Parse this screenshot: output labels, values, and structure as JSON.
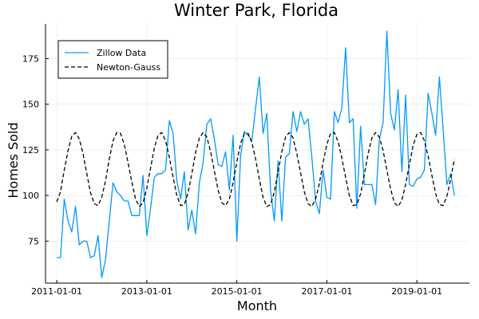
{
  "chart_data": {
    "type": "line",
    "title": "Winter Park, Florida",
    "xlabel": "Month",
    "ylabel": "Homes Sold",
    "x_ticks": [
      "2011-01-01",
      "2013-01-01",
      "2015-01-01",
      "2017-01-01",
      "2019-01-01"
    ],
    "y_ticks": [
      75,
      100,
      125,
      150,
      175
    ],
    "xlim": [
      "2010-10-01",
      "2020-03-01"
    ],
    "ylim": [
      52,
      194
    ],
    "grid": true,
    "legend_position": "top-left",
    "series": [
      {
        "name": "Zillow Data",
        "color": "#009af9",
        "style": "solid",
        "x": [
          "2011-01-01",
          "2011-02-01",
          "2011-03-01",
          "2011-04-01",
          "2011-05-01",
          "2011-06-01",
          "2011-07-01",
          "2011-08-01",
          "2011-09-01",
          "2011-10-01",
          "2011-11-01",
          "2011-12-01",
          "2012-01-01",
          "2012-02-01",
          "2012-03-01",
          "2012-04-01",
          "2012-05-01",
          "2012-06-01",
          "2012-07-01",
          "2012-08-01",
          "2012-09-01",
          "2012-10-01",
          "2012-11-01",
          "2012-12-01",
          "2013-01-01",
          "2013-02-01",
          "2013-03-01",
          "2013-04-01",
          "2013-05-01",
          "2013-06-01",
          "2013-07-01",
          "2013-08-01",
          "2013-09-01",
          "2013-10-01",
          "2013-11-01",
          "2013-12-01",
          "2014-01-01",
          "2014-02-01",
          "2014-03-01",
          "2014-04-01",
          "2014-05-01",
          "2014-06-01",
          "2014-07-01",
          "2014-08-01",
          "2014-09-01",
          "2014-10-01",
          "2014-11-01",
          "2014-12-01",
          "2015-01-01",
          "2015-02-01",
          "2015-03-01",
          "2015-04-01",
          "2015-05-01",
          "2015-06-01",
          "2015-07-01",
          "2015-08-01",
          "2015-09-01",
          "2015-10-01",
          "2015-11-01",
          "2015-12-01",
          "2016-01-01",
          "2016-02-01",
          "2016-03-01",
          "2016-04-01",
          "2016-05-01",
          "2016-06-01",
          "2016-07-01",
          "2016-08-01",
          "2016-09-01",
          "2016-10-01",
          "2016-11-01",
          "2016-12-01",
          "2017-01-01",
          "2017-02-01",
          "2017-03-01",
          "2017-04-01",
          "2017-05-01",
          "2017-06-01",
          "2017-07-01",
          "2017-08-01",
          "2017-09-01",
          "2017-10-01",
          "2017-11-01",
          "2017-12-01",
          "2018-01-01",
          "2018-02-01",
          "2018-03-01",
          "2018-04-01",
          "2018-05-01",
          "2018-06-01",
          "2018-07-01",
          "2018-08-01",
          "2018-09-01",
          "2018-10-01",
          "2018-11-01",
          "2018-12-01",
          "2019-01-01",
          "2019-02-01",
          "2019-03-01",
          "2019-04-01",
          "2019-05-01",
          "2019-06-01",
          "2019-07-01",
          "2019-08-01",
          "2019-09-01",
          "2019-10-01",
          "2019-11-01"
        ],
        "values": [
          66,
          66,
          98,
          86,
          80,
          94,
          73,
          75,
          75,
          66,
          67,
          78,
          55,
          65,
          86,
          107,
          102,
          100,
          97,
          97,
          89,
          89,
          89,
          111,
          78,
          93,
          110,
          112,
          112,
          114,
          141,
          134,
          108,
          98,
          113,
          81,
          92,
          79,
          107,
          118,
          139,
          142,
          131,
          117,
          116,
          124,
          103,
          133,
          75,
          122,
          135,
          133,
          130,
          148,
          165,
          134,
          145,
          103,
          86,
          119,
          86,
          121,
          123,
          146,
          135,
          146,
          139,
          142,
          121,
          97,
          90,
          114,
          99,
          98,
          146,
          140,
          148,
          181,
          140,
          142,
          93,
          138,
          106,
          106,
          106,
          95,
          131,
          140,
          190,
          145,
          136,
          158,
          113,
          155,
          106,
          105,
          109,
          110,
          114,
          156,
          145,
          133,
          165,
          136,
          106,
          112,
          100
        ]
      },
      {
        "name": "Newton-Gauss",
        "color": "#000000",
        "style": "dashed",
        "x": [
          "2011-01-01",
          "2011-02-01",
          "2011-03-01",
          "2011-04-01",
          "2011-05-01",
          "2011-06-01",
          "2011-07-01",
          "2011-08-01",
          "2011-09-01",
          "2011-10-01",
          "2011-11-01",
          "2011-12-01",
          "2012-01-01",
          "2012-02-01",
          "2012-03-01",
          "2012-04-01",
          "2012-05-01",
          "2012-06-01",
          "2012-07-01",
          "2012-08-01",
          "2012-09-01",
          "2012-10-01",
          "2012-11-01",
          "2012-12-01",
          "2013-01-01",
          "2013-02-01",
          "2013-03-01",
          "2013-04-01",
          "2013-05-01",
          "2013-06-01",
          "2013-07-01",
          "2013-08-01",
          "2013-09-01",
          "2013-10-01",
          "2013-11-01",
          "2013-12-01",
          "2014-01-01",
          "2014-02-01",
          "2014-03-01",
          "2014-04-01",
          "2014-05-01",
          "2014-06-01",
          "2014-07-01",
          "2014-08-01",
          "2014-09-01",
          "2014-10-01",
          "2014-11-01",
          "2014-12-01",
          "2015-01-01",
          "2015-02-01",
          "2015-03-01",
          "2015-04-01",
          "2015-05-01",
          "2015-06-01",
          "2015-07-01",
          "2015-08-01",
          "2015-09-01",
          "2015-10-01",
          "2015-11-01",
          "2015-12-01",
          "2016-01-01",
          "2016-02-01",
          "2016-03-01",
          "2016-04-01",
          "2016-05-01",
          "2016-06-01",
          "2016-07-01",
          "2016-08-01",
          "2016-09-01",
          "2016-10-01",
          "2016-11-01",
          "2016-12-01",
          "2017-01-01",
          "2017-02-01",
          "2017-03-01",
          "2017-04-01",
          "2017-05-01",
          "2017-06-01",
          "2017-07-01",
          "2017-08-01",
          "2017-09-01",
          "2017-10-01",
          "2017-11-01",
          "2017-12-01",
          "2018-01-01",
          "2018-02-01",
          "2018-03-01",
          "2018-04-01",
          "2018-05-01",
          "2018-06-01",
          "2018-07-01",
          "2018-08-01",
          "2018-09-01",
          "2018-10-01",
          "2018-11-01",
          "2018-12-01",
          "2019-01-01",
          "2019-02-01",
          "2019-03-01",
          "2019-04-01",
          "2019-05-01",
          "2019-06-01",
          "2019-07-01",
          "2019-08-01",
          "2019-09-01",
          "2019-10-01",
          "2019-11-01"
        ],
        "values": [
          96.5,
          102.0,
          114.0,
          124.5,
          132.5,
          134.5,
          131.0,
          123.0,
          112.0,
          101.5,
          95.5,
          94.5,
          99.0,
          108.0,
          120.0,
          130.0,
          134.5,
          134.0,
          128.0,
          118.0,
          107.5,
          98.0,
          94.0,
          96.0,
          104.0,
          115.0,
          126.0,
          133.0,
          134.5,
          130.0,
          121.0,
          110.0,
          100.0,
          94.5,
          95.0,
          101.5,
          112.0,
          123.5,
          131.5,
          134.5,
          132.0,
          124.0,
          113.5,
          103.0,
          96.0,
          94.5,
          98.0,
          107.0,
          118.5,
          128.5,
          134.0,
          134.0,
          129.0,
          120.0,
          109.0,
          99.0,
          94.0,
          95.0,
          102.0,
          113.0,
          124.0,
          132.0,
          134.5,
          131.5,
          123.0,
          112.5,
          102.0,
          95.5,
          94.0,
          98.0,
          106.5,
          118.0,
          128.0,
          134.0,
          134.5,
          129.5,
          120.5,
          110.0,
          100.0,
          94.5,
          95.0,
          101.0,
          111.5,
          123.0,
          131.5,
          134.5,
          132.0,
          124.5,
          114.0,
          103.5,
          96.0,
          94.0,
          97.5,
          106.0,
          117.0,
          127.5,
          133.5,
          134.5,
          130.0,
          121.5,
          111.0,
          101.0,
          95.0,
          94.5,
          99.5,
          109.0,
          120.0
        ]
      }
    ]
  }
}
